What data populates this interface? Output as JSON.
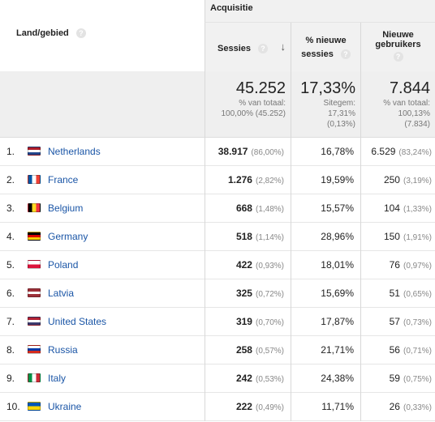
{
  "header": {
    "dimension_label": "Land/gebied",
    "group_label": "Acquisitie",
    "col_sessions": "Sessies",
    "col_new_sessions_line1": "% nieuwe",
    "col_new_sessions_line2": "sessies",
    "col_new_users_line1": "Nieuwe",
    "col_new_users_line2": "gebruikers",
    "help_glyph": "?",
    "sort_glyph": "↓"
  },
  "totals": {
    "sessions": "45.252",
    "sessions_sub1": "% van totaal:",
    "sessions_sub2": "100,00% (45.252)",
    "new_sessions": "17,33%",
    "new_sessions_sub1": "Sitegem:",
    "new_sessions_sub2": "17,31%",
    "new_sessions_sub3": "(0,13%)",
    "new_users": "7.844",
    "new_users_sub1": "% van totaal:",
    "new_users_sub2": "100,13%",
    "new_users_sub3": "(7.834)"
  },
  "rows": [
    {
      "rank": "1.",
      "country": "Netherlands",
      "sessions": "38.917",
      "sessions_pct": "(86,00%)",
      "new_sessions": "16,78%",
      "new_users": "6.529",
      "new_users_pct": "(83,24%)",
      "flag": [
        "#ae1c28",
        "#ffffff",
        "#21468b"
      ]
    },
    {
      "rank": "2.",
      "country": "France",
      "sessions": "1.276",
      "sessions_pct": "(2,82%)",
      "new_sessions": "19,59%",
      "new_users": "250",
      "new_users_pct": "(3,19%)",
      "flag": [
        "#0055a4",
        "#ffffff",
        "#ef4135"
      ]
    },
    {
      "rank": "3.",
      "country": "Belgium",
      "sessions": "668",
      "sessions_pct": "(1,48%)",
      "new_sessions": "15,57%",
      "new_users": "104",
      "new_users_pct": "(1,33%)",
      "flag": [
        "#000000",
        "#fdda24",
        "#ef3340"
      ]
    },
    {
      "rank": "4.",
      "country": "Germany",
      "sessions": "518",
      "sessions_pct": "(1,14%)",
      "new_sessions": "28,96%",
      "new_users": "150",
      "new_users_pct": "(1,91%)",
      "flag": [
        "#000000",
        "#dd0000",
        "#ffce00"
      ]
    },
    {
      "rank": "5.",
      "country": "Poland",
      "sessions": "422",
      "sessions_pct": "(0,93%)",
      "new_sessions": "18,01%",
      "new_users": "76",
      "new_users_pct": "(0,97%)",
      "flag": [
        "#ffffff",
        "#dc143c"
      ]
    },
    {
      "rank": "6.",
      "country": "Latvia",
      "sessions": "325",
      "sessions_pct": "(0,72%)",
      "new_sessions": "15,69%",
      "new_users": "51",
      "new_users_pct": "(0,65%)",
      "flag": [
        "#9e3039",
        "#ffffff",
        "#9e3039"
      ]
    },
    {
      "rank": "7.",
      "country": "United States",
      "sessions": "319",
      "sessions_pct": "(0,70%)",
      "new_sessions": "17,87%",
      "new_users": "57",
      "new_users_pct": "(0,73%)",
      "flag": [
        "#b22234",
        "#ffffff",
        "#3c3b6e"
      ]
    },
    {
      "rank": "8.",
      "country": "Russia",
      "sessions": "258",
      "sessions_pct": "(0,57%)",
      "new_sessions": "21,71%",
      "new_users": "56",
      "new_users_pct": "(0,71%)",
      "flag": [
        "#ffffff",
        "#0039a6",
        "#d52b1e"
      ]
    },
    {
      "rank": "9.",
      "country": "Italy",
      "sessions": "242",
      "sessions_pct": "(0,53%)",
      "new_sessions": "24,38%",
      "new_users": "59",
      "new_users_pct": "(0,75%)",
      "flag": [
        "#009246",
        "#ffffff",
        "#ce2b37"
      ]
    },
    {
      "rank": "10.",
      "country": "Ukraine",
      "sessions": "222",
      "sessions_pct": "(0,49%)",
      "new_sessions": "11,71%",
      "new_users": "26",
      "new_users_pct": "(0,33%)",
      "flag": [
        "#0057b7",
        "#ffd700"
      ]
    }
  ]
}
